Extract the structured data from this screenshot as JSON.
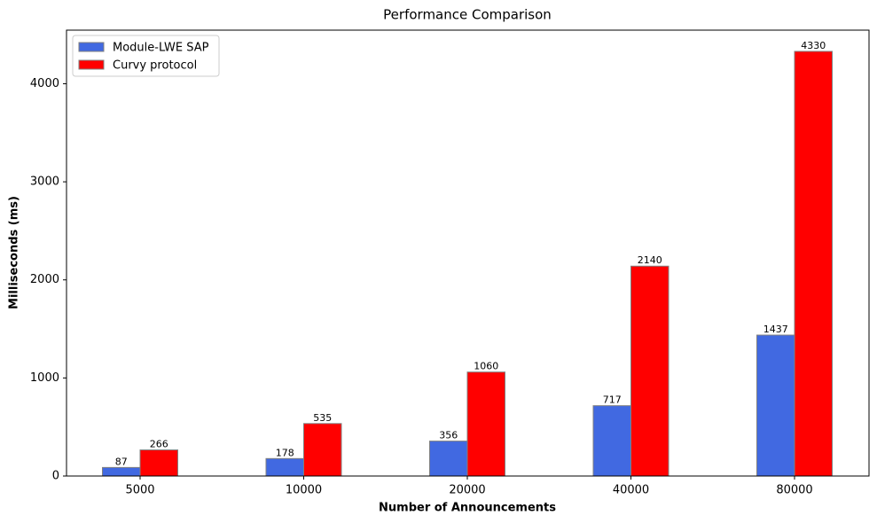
{
  "chart_data": {
    "type": "bar",
    "title": "Performance Comparison",
    "x_label": "Number of Announcements",
    "y_label": "Milliseconds (ms)",
    "categories": [
      "5000",
      "10000",
      "20000",
      "40000",
      "80000"
    ],
    "series": [
      {
        "name": "Module-LWE SAP",
        "color": "#4169e1",
        "values": [
          87,
          178,
          356,
          717,
          1437
        ]
      },
      {
        "name": "Curvy protocol",
        "color": "#ff0000",
        "values": [
          266,
          535,
          1060,
          2140,
          4330
        ]
      }
    ],
    "ylim": [
      0,
      4546.5
    ],
    "yticks": [
      0,
      1000,
      2000,
      3000,
      4000
    ],
    "legend": "upper-left",
    "edge_color": "#808080"
  }
}
